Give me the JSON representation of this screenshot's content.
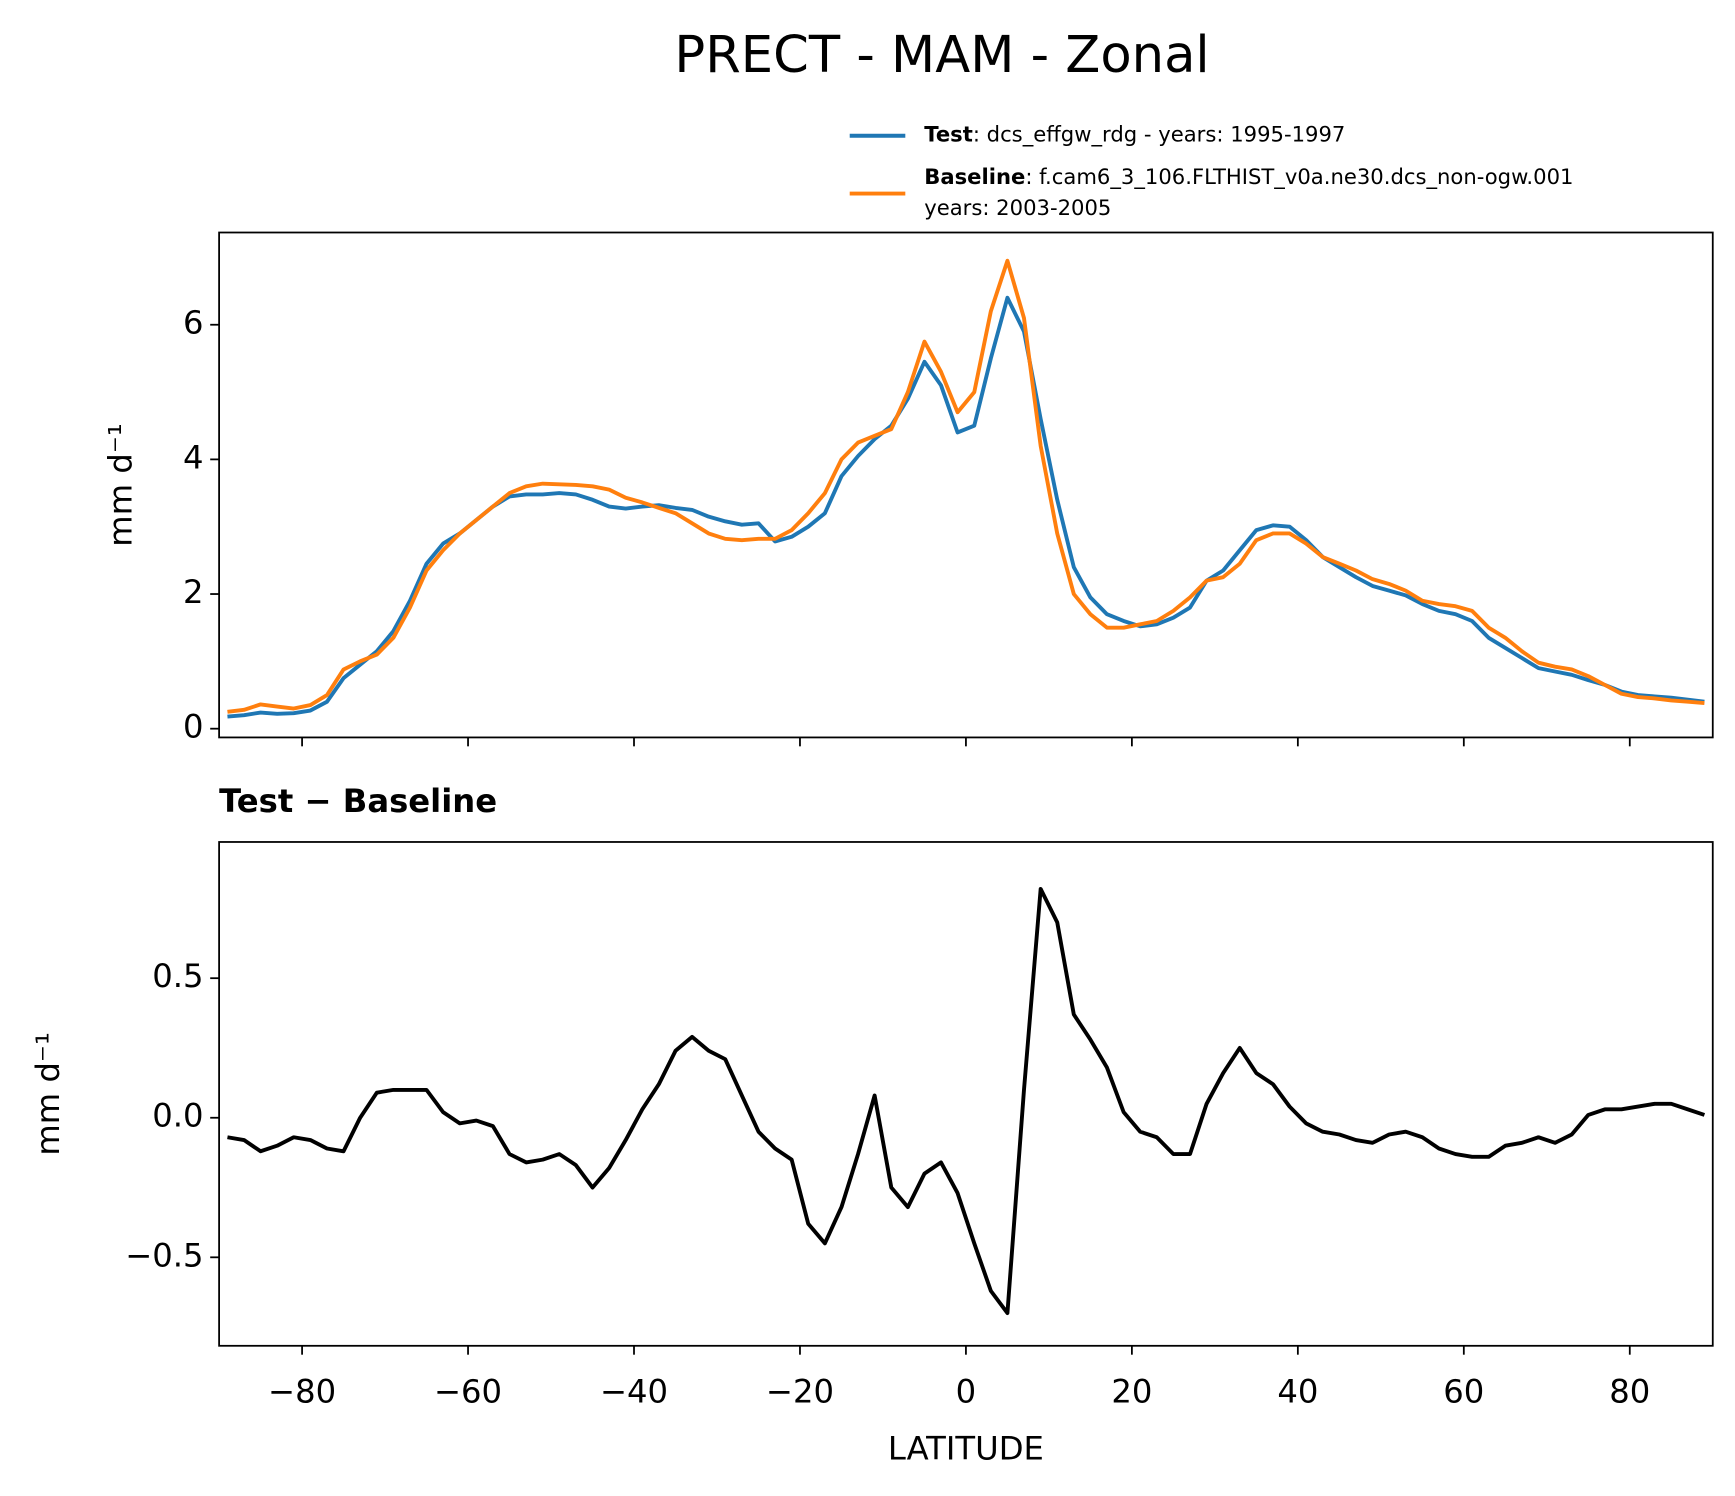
{
  "chart_data": [
    {
      "type": "line",
      "title": "PRECT - MAM - Zonal",
      "ylabel": "mm d⁻¹",
      "legend": "above",
      "x": [
        -89,
        -87,
        -85,
        -83,
        -81,
        -79,
        -77,
        -75,
        -73,
        -71,
        -69,
        -67,
        -65,
        -63,
        -61,
        -59,
        -57,
        -55,
        -53,
        -51,
        -49,
        -47,
        -45,
        -43,
        -41,
        -39,
        -37,
        -35,
        -33,
        -31,
        -29,
        -27,
        -25,
        -23,
        -21,
        -19,
        -17,
        -15,
        -13,
        -11,
        -9,
        -7,
        -5,
        -3,
        -1,
        1,
        3,
        5,
        7,
        9,
        11,
        13,
        15,
        17,
        19,
        21,
        23,
        25,
        27,
        29,
        31,
        33,
        35,
        37,
        39,
        41,
        43,
        45,
        47,
        49,
        51,
        53,
        55,
        57,
        59,
        61,
        63,
        65,
        67,
        69,
        71,
        73,
        75,
        77,
        79,
        81,
        83,
        85,
        87,
        89
      ],
      "series": [
        {
          "name": "Test",
          "description": [
            ": dcs_effgw_rdg - years: 1995-1997"
          ],
          "color": "#1f77b4",
          "values": [
            0.18,
            0.2,
            0.24,
            0.22,
            0.23,
            0.27,
            0.4,
            0.75,
            0.95,
            1.15,
            1.45,
            1.9,
            2.45,
            2.75,
            2.9,
            3.1,
            3.3,
            3.45,
            3.48,
            3.48,
            3.5,
            3.48,
            3.4,
            3.3,
            3.27,
            3.3,
            3.32,
            3.28,
            3.25,
            3.15,
            3.08,
            3.03,
            3.05,
            2.78,
            2.85,
            3.0,
            3.2,
            3.75,
            4.05,
            4.3,
            4.5,
            4.9,
            5.45,
            5.1,
            4.4,
            4.5,
            5.5,
            6.4,
            5.9,
            4.6,
            3.4,
            2.4,
            1.95,
            1.7,
            1.6,
            1.52,
            1.55,
            1.65,
            1.8,
            2.2,
            2.35,
            2.65,
            2.95,
            3.02,
            3.0,
            2.8,
            2.55,
            2.4,
            2.25,
            2.12,
            2.05,
            1.98,
            1.85,
            1.75,
            1.7,
            1.6,
            1.35,
            1.2,
            1.05,
            0.9,
            0.85,
            0.8,
            0.72,
            0.65,
            0.55,
            0.5,
            0.48,
            0.46,
            0.43,
            0.4
          ]
        },
        {
          "name": "Baseline",
          "description": [
            ": f.cam6_3_106.FLTHIST_v0a.ne30.dcs_non-ogw.001",
            "years: 2003-2005"
          ],
          "color": "#ff7f0e",
          "values": [
            0.25,
            0.28,
            0.36,
            0.33,
            0.3,
            0.35,
            0.5,
            0.88,
            1.0,
            1.1,
            1.35,
            1.8,
            2.35,
            2.65,
            2.9,
            3.1,
            3.3,
            3.5,
            3.6,
            3.64,
            3.63,
            3.62,
            3.6,
            3.55,
            3.43,
            3.36,
            3.28,
            3.2,
            3.05,
            2.9,
            2.82,
            2.8,
            2.82,
            2.82,
            2.95,
            3.2,
            3.5,
            4.0,
            4.25,
            4.35,
            4.45,
            5.0,
            5.75,
            5.3,
            4.7,
            5.0,
            6.2,
            6.95,
            6.1,
            4.2,
            2.9,
            2.0,
            1.7,
            1.5,
            1.5,
            1.55,
            1.6,
            1.75,
            1.95,
            2.2,
            2.25,
            2.45,
            2.8,
            2.9,
            2.9,
            2.75,
            2.55,
            2.45,
            2.35,
            2.22,
            2.15,
            2.05,
            1.9,
            1.85,
            1.82,
            1.75,
            1.5,
            1.35,
            1.15,
            0.98,
            0.92,
            0.88,
            0.78,
            0.65,
            0.52,
            0.47,
            0.45,
            0.42,
            0.4,
            0.38
          ]
        }
      ],
      "xlim": [
        -90,
        90
      ],
      "xticks": [
        -80,
        -60,
        -40,
        -20,
        0,
        20,
        40,
        60,
        80
      ],
      "ylim": [
        -0.13,
        7.37
      ],
      "yticks": [
        0,
        2,
        4,
        6
      ]
    },
    {
      "type": "line",
      "title": "Test − Baseline",
      "ylabel": "mm d⁻¹",
      "xlabel": "LATITUDE",
      "color": "#000000",
      "x": [
        -89,
        -87,
        -85,
        -83,
        -81,
        -79,
        -77,
        -75,
        -73,
        -71,
        -69,
        -67,
        -65,
        -63,
        -61,
        -59,
        -57,
        -55,
        -53,
        -51,
        -49,
        -47,
        -45,
        -43,
        -41,
        -39,
        -37,
        -35,
        -33,
        -31,
        -29,
        -27,
        -25,
        -23,
        -21,
        -19,
        -17,
        -15,
        -13,
        -11,
        -9,
        -7,
        -5,
        -3,
        -1,
        1,
        3,
        5,
        7,
        9,
        11,
        13,
        15,
        17,
        19,
        21,
        23,
        25,
        27,
        29,
        31,
        33,
        35,
        37,
        39,
        41,
        43,
        45,
        47,
        49,
        51,
        53,
        55,
        57,
        59,
        61,
        63,
        65,
        67,
        69,
        71,
        73,
        75,
        77,
        79,
        81,
        83,
        85,
        87,
        89
      ],
      "values": [
        -0.07,
        -0.08,
        -0.12,
        -0.1,
        -0.07,
        -0.08,
        -0.11,
        -0.12,
        0.0,
        0.09,
        0.1,
        0.1,
        0.1,
        0.02,
        -0.02,
        -0.01,
        -0.03,
        -0.13,
        -0.16,
        -0.15,
        -0.13,
        -0.17,
        -0.25,
        -0.18,
        -0.08,
        0.03,
        0.12,
        0.24,
        0.29,
        0.24,
        0.21,
        0.08,
        -0.05,
        -0.11,
        -0.15,
        -0.38,
        -0.45,
        -0.32,
        -0.13,
        0.08,
        -0.25,
        -0.32,
        -0.2,
        -0.16,
        -0.27,
        -0.45,
        -0.62,
        -0.7,
        0.1,
        0.82,
        0.7,
        0.37,
        0.28,
        0.18,
        0.02,
        -0.05,
        -0.07,
        -0.13,
        -0.13,
        0.05,
        0.16,
        0.25,
        0.16,
        0.12,
        0.04,
        -0.02,
        -0.05,
        -0.06,
        -0.08,
        -0.09,
        -0.06,
        -0.05,
        -0.07,
        -0.11,
        -0.13,
        -0.14,
        -0.14,
        -0.1,
        -0.09,
        -0.07,
        -0.09,
        -0.06,
        0.01,
        0.03,
        0.03,
        0.04,
        0.05,
        0.05,
        0.03,
        0.01
      ],
      "xlim": [
        -90,
        90
      ],
      "xticks": [
        {
          "value": -80,
          "label": "−80"
        },
        {
          "value": -60,
          "label": "−60"
        },
        {
          "value": -40,
          "label": "−40"
        },
        {
          "value": -20,
          "label": "−20"
        },
        {
          "value": 0,
          "label": "0"
        },
        {
          "value": 20,
          "label": "20"
        },
        {
          "value": 40,
          "label": "40"
        },
        {
          "value": 60,
          "label": "60"
        },
        {
          "value": 80,
          "label": "80"
        }
      ],
      "ylim": [
        -0.817,
        0.988
      ],
      "yticks": [
        {
          "value": -0.5,
          "label": "−0.5"
        },
        {
          "value": 0,
          "label": "0.0"
        },
        {
          "value": 0.5,
          "label": "0.5"
        }
      ]
    }
  ]
}
